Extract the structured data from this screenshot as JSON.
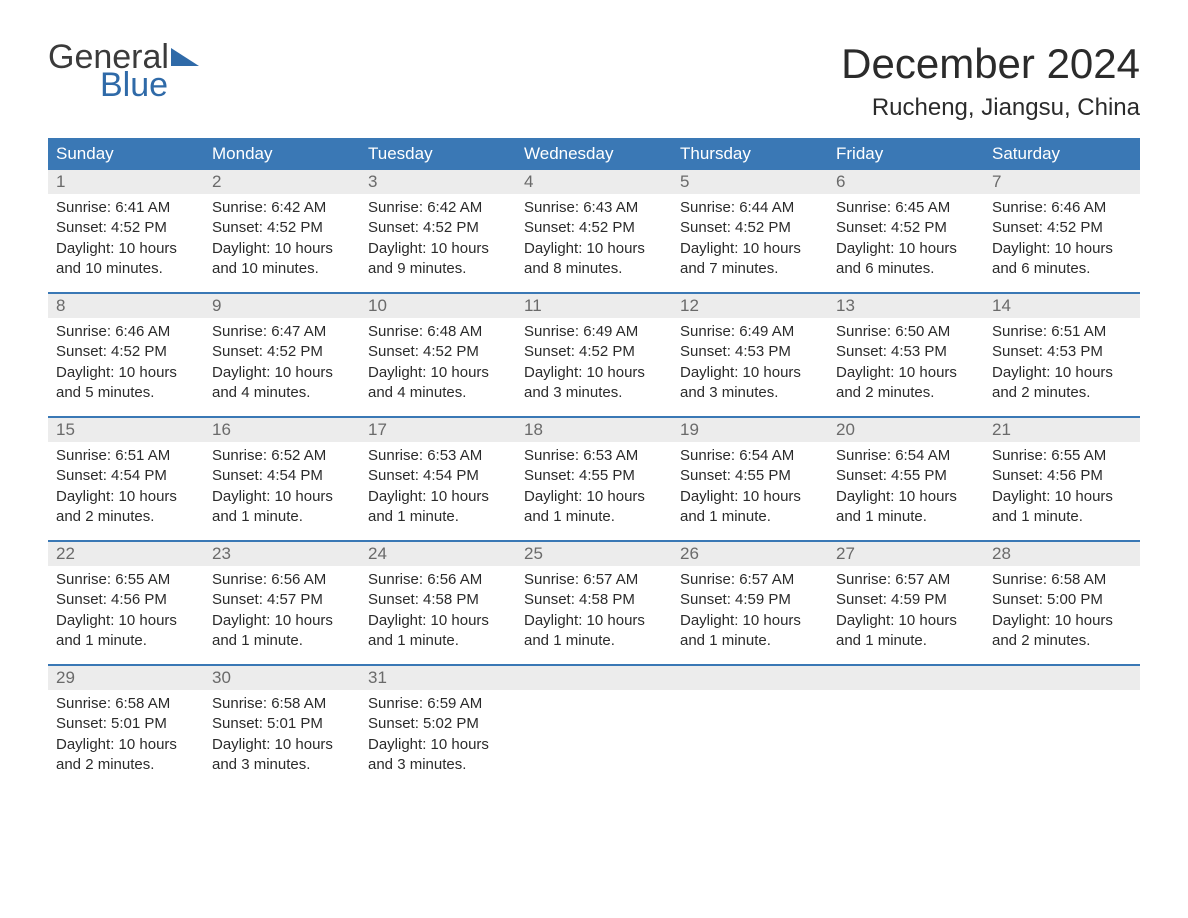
{
  "logo": {
    "word1": "General",
    "word2": "Blue"
  },
  "title": "December 2024",
  "location": "Rucheng, Jiangsu, China",
  "colors": {
    "header_bg": "#3a78b5",
    "header_text": "#ffffff",
    "daynum_bg": "#ececec",
    "daynum_text": "#6a6a6a",
    "body_text": "#2b2b2b",
    "week_divider": "#3a78b5",
    "logo_blue": "#2f6aa8"
  },
  "weekday_labels": [
    "Sunday",
    "Monday",
    "Tuesday",
    "Wednesday",
    "Thursday",
    "Friday",
    "Saturday"
  ],
  "weeks": [
    [
      {
        "n": "1",
        "sunrise": "6:41 AM",
        "sunset": "4:52 PM",
        "daylight": "10 hours and 10 minutes."
      },
      {
        "n": "2",
        "sunrise": "6:42 AM",
        "sunset": "4:52 PM",
        "daylight": "10 hours and 10 minutes."
      },
      {
        "n": "3",
        "sunrise": "6:42 AM",
        "sunset": "4:52 PM",
        "daylight": "10 hours and 9 minutes."
      },
      {
        "n": "4",
        "sunrise": "6:43 AM",
        "sunset": "4:52 PM",
        "daylight": "10 hours and 8 minutes."
      },
      {
        "n": "5",
        "sunrise": "6:44 AM",
        "sunset": "4:52 PM",
        "daylight": "10 hours and 7 minutes."
      },
      {
        "n": "6",
        "sunrise": "6:45 AM",
        "sunset": "4:52 PM",
        "daylight": "10 hours and 6 minutes."
      },
      {
        "n": "7",
        "sunrise": "6:46 AM",
        "sunset": "4:52 PM",
        "daylight": "10 hours and 6 minutes."
      }
    ],
    [
      {
        "n": "8",
        "sunrise": "6:46 AM",
        "sunset": "4:52 PM",
        "daylight": "10 hours and 5 minutes."
      },
      {
        "n": "9",
        "sunrise": "6:47 AM",
        "sunset": "4:52 PM",
        "daylight": "10 hours and 4 minutes."
      },
      {
        "n": "10",
        "sunrise": "6:48 AM",
        "sunset": "4:52 PM",
        "daylight": "10 hours and 4 minutes."
      },
      {
        "n": "11",
        "sunrise": "6:49 AM",
        "sunset": "4:52 PM",
        "daylight": "10 hours and 3 minutes."
      },
      {
        "n": "12",
        "sunrise": "6:49 AM",
        "sunset": "4:53 PM",
        "daylight": "10 hours and 3 minutes."
      },
      {
        "n": "13",
        "sunrise": "6:50 AM",
        "sunset": "4:53 PM",
        "daylight": "10 hours and 2 minutes."
      },
      {
        "n": "14",
        "sunrise": "6:51 AM",
        "sunset": "4:53 PM",
        "daylight": "10 hours and 2 minutes."
      }
    ],
    [
      {
        "n": "15",
        "sunrise": "6:51 AM",
        "sunset": "4:54 PM",
        "daylight": "10 hours and 2 minutes."
      },
      {
        "n": "16",
        "sunrise": "6:52 AM",
        "sunset": "4:54 PM",
        "daylight": "10 hours and 1 minute."
      },
      {
        "n": "17",
        "sunrise": "6:53 AM",
        "sunset": "4:54 PM",
        "daylight": "10 hours and 1 minute."
      },
      {
        "n": "18",
        "sunrise": "6:53 AM",
        "sunset": "4:55 PM",
        "daylight": "10 hours and 1 minute."
      },
      {
        "n": "19",
        "sunrise": "6:54 AM",
        "sunset": "4:55 PM",
        "daylight": "10 hours and 1 minute."
      },
      {
        "n": "20",
        "sunrise": "6:54 AM",
        "sunset": "4:55 PM",
        "daylight": "10 hours and 1 minute."
      },
      {
        "n": "21",
        "sunrise": "6:55 AM",
        "sunset": "4:56 PM",
        "daylight": "10 hours and 1 minute."
      }
    ],
    [
      {
        "n": "22",
        "sunrise": "6:55 AM",
        "sunset": "4:56 PM",
        "daylight": "10 hours and 1 minute."
      },
      {
        "n": "23",
        "sunrise": "6:56 AM",
        "sunset": "4:57 PM",
        "daylight": "10 hours and 1 minute."
      },
      {
        "n": "24",
        "sunrise": "6:56 AM",
        "sunset": "4:58 PM",
        "daylight": "10 hours and 1 minute."
      },
      {
        "n": "25",
        "sunrise": "6:57 AM",
        "sunset": "4:58 PM",
        "daylight": "10 hours and 1 minute."
      },
      {
        "n": "26",
        "sunrise": "6:57 AM",
        "sunset": "4:59 PM",
        "daylight": "10 hours and 1 minute."
      },
      {
        "n": "27",
        "sunrise": "6:57 AM",
        "sunset": "4:59 PM",
        "daylight": "10 hours and 1 minute."
      },
      {
        "n": "28",
        "sunrise": "6:58 AM",
        "sunset": "5:00 PM",
        "daylight": "10 hours and 2 minutes."
      }
    ],
    [
      {
        "n": "29",
        "sunrise": "6:58 AM",
        "sunset": "5:01 PM",
        "daylight": "10 hours and 2 minutes."
      },
      {
        "n": "30",
        "sunrise": "6:58 AM",
        "sunset": "5:01 PM",
        "daylight": "10 hours and 3 minutes."
      },
      {
        "n": "31",
        "sunrise": "6:59 AM",
        "sunset": "5:02 PM",
        "daylight": "10 hours and 3 minutes."
      },
      null,
      null,
      null,
      null
    ]
  ],
  "labels": {
    "sunrise": "Sunrise:",
    "sunset": "Sunset:",
    "daylight": "Daylight:"
  }
}
